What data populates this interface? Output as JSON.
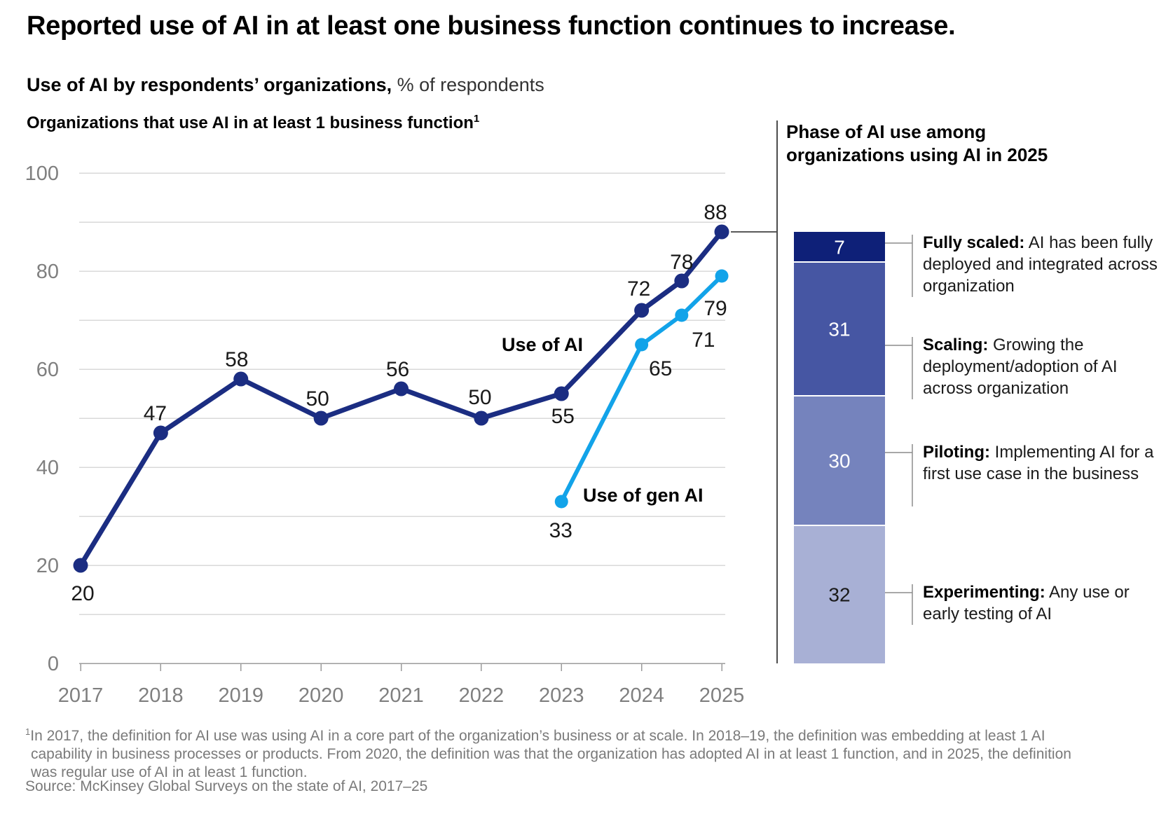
{
  "title": "Reported use of AI in at least one business function continues to increase.",
  "subtitle": {
    "bold": "Use of AI by respondents’ organizations,",
    "regular": "% of respondents"
  },
  "left_heading": {
    "text": "Organizations that use AI in at least 1 business function",
    "sup": "1"
  },
  "right_heading": "Phase of AI use among organizations using AI in 2025",
  "series_labels": {
    "ai": "Use of AI",
    "gen_ai": "Use of gen AI"
  },
  "footnote": {
    "sup": "1",
    "text": "In 2017, the definition for AI use was using AI in a core part of the organization’s business or at scale. In 2018–19, the definition was embedding at least 1 AI capability in business processes or products. From 2020, the definition was that the organization has adopted AI in at least 1 function, and in 2025, the definition was regular use of AI in at least 1 function."
  },
  "source": "Source: McKinsey Global Surveys on the state of AI, 2017–25",
  "colors": {
    "grid": "#d9d9d9",
    "axis": "#9b9b9b",
    "axis_label": "#7f7f7f",
    "value_label": "#1a1a1a",
    "divider": "#4d4d4d",
    "connector": "#595959",
    "leader": "#8c8c8c",
    "segment_separator": "#ffffff"
  },
  "chart_data": [
    {
      "type": "line",
      "title": "Organizations that use AI in at least 1 business function",
      "ylabel": "% of respondents",
      "ylim": [
        0,
        100
      ],
      "yticks": [
        0,
        20,
        40,
        60,
        80,
        100
      ],
      "grid_step": 10,
      "grid": true,
      "legend_position": "inline-labels",
      "xticks": [
        "2017",
        "2018",
        "2019",
        "2020",
        "2021",
        "2022",
        "2023",
        "2024",
        "2025"
      ],
      "series": [
        {
          "name": "Use of AI",
          "color": "#1b2d82",
          "x": [
            2017,
            2018,
            2019,
            2020,
            2021,
            2022,
            2023,
            2024,
            2024.5,
            2025
          ],
          "values": [
            20,
            47,
            58,
            50,
            56,
            50,
            55,
            72,
            78,
            88
          ]
        },
        {
          "name": "Use of gen AI",
          "color": "#12a3e9",
          "x": [
            2023,
            2024,
            2024.5,
            2025
          ],
          "values": [
            33,
            65,
            71,
            79
          ]
        }
      ]
    },
    {
      "type": "bar",
      "variant": "stacked-column",
      "title": "Phase of AI use among organizations using AI in 2025",
      "total": 100,
      "align_top_with_value": 88,
      "segments": [
        {
          "label": "Fully scaled:",
          "value": 7,
          "color": "#0e2078",
          "value_color": "#ffffff",
          "description": "AI has been fully deployed and integrated across organization"
        },
        {
          "label": "Scaling:",
          "value": 31,
          "color": "#4656a3",
          "value_color": "#ffffff",
          "description": "Growing the deployment/adoption of AI across organization"
        },
        {
          "label": "Piloting:",
          "value": 30,
          "color": "#7583bd",
          "value_color": "#ffffff",
          "description": "Implementing AI for a first use case in the business"
        },
        {
          "label": "Experimenting:",
          "value": 32,
          "color": "#a8b0d5",
          "value_color": "#1a1a1a",
          "description": "Any use or early testing of AI"
        }
      ]
    }
  ]
}
